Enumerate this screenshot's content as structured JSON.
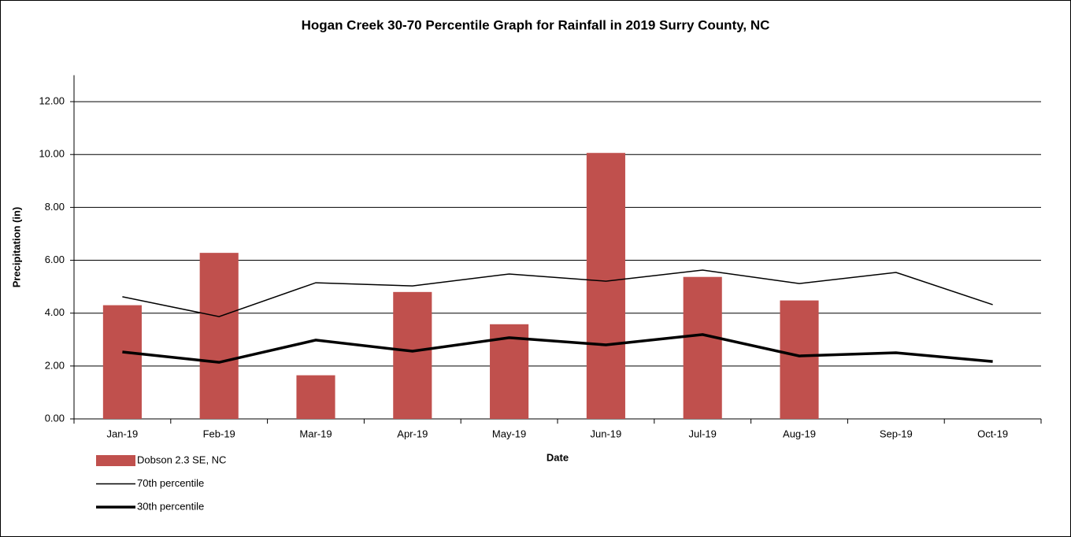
{
  "chart_data": {
    "type": "bar_line",
    "title": "Hogan Creek 30-70 Percentile Graph for Rainfall in 2019 Surry County, NC",
    "x_label": "Date",
    "y_label": "Precipitation (in)",
    "categories": [
      "Jan-19",
      "Feb-19",
      "Mar-19",
      "Apr-19",
      "May-19",
      "Jun-19",
      "Jul-19",
      "Aug-19",
      "Sep-19",
      "Oct-19"
    ],
    "series": [
      {
        "name": "Dobson 2.3 SE, NC",
        "type": "bar",
        "color": "#c0504d",
        "values": [
          4.3,
          6.28,
          1.65,
          4.8,
          3.58,
          10.06,
          5.37,
          4.48,
          null,
          null
        ]
      },
      {
        "name": "70th percentile",
        "type": "line",
        "color": "#000000",
        "width": 1.5,
        "values": [
          4.62,
          3.87,
          5.15,
          5.03,
          5.48,
          5.21,
          5.63,
          5.12,
          5.54,
          4.32
        ]
      },
      {
        "name": "30th percentile",
        "type": "line",
        "color": "#000000",
        "width": 3.5,
        "values": [
          2.53,
          2.14,
          2.98,
          2.56,
          3.07,
          2.8,
          3.19,
          2.38,
          2.5,
          2.17
        ]
      }
    ],
    "ylim": [
      0,
      13
    ],
    "yticks": [
      {
        "value": 0,
        "label": "0.00"
      },
      {
        "value": 2,
        "label": "2.00"
      },
      {
        "value": 4,
        "label": "4.00"
      },
      {
        "value": 6,
        "label": "6.00"
      },
      {
        "value": 8,
        "label": "8.00"
      },
      {
        "value": 10,
        "label": "10.00"
      },
      {
        "value": 12,
        "label": "12.00"
      }
    ],
    "grid": true,
    "legend": "bottom-left"
  }
}
